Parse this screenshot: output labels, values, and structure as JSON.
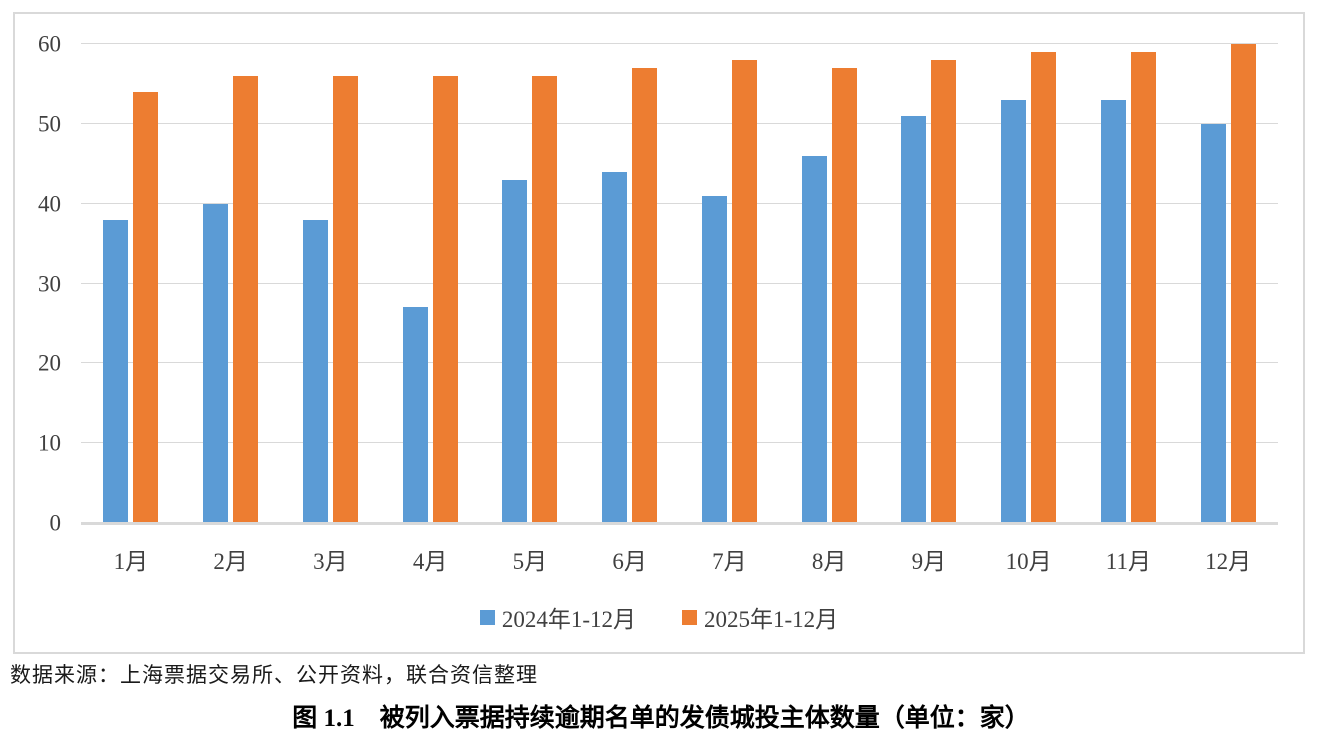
{
  "chart_data": {
    "type": "bar",
    "categories": [
      "1月",
      "2月",
      "3月",
      "4月",
      "5月",
      "6月",
      "7月",
      "8月",
      "9月",
      "10月",
      "11月",
      "12月"
    ],
    "series": [
      {
        "name": "2024年1-12月",
        "color": "#5B9BD5",
        "values": [
          38,
          40,
          38,
          27,
          43,
          44,
          41,
          46,
          51,
          53,
          53,
          50
        ]
      },
      {
        "name": "2025年1-12月",
        "color": "#ED7D31",
        "values": [
          54,
          56,
          56,
          56,
          56,
          57,
          58,
          57,
          58,
          59,
          59,
          60
        ]
      }
    ],
    "title": "",
    "xlabel": "",
    "ylabel": "",
    "ylim": [
      0,
      60
    ],
    "yticks": [
      0,
      10,
      20,
      30,
      40,
      50,
      60
    ],
    "grid": true,
    "legend_position": "bottom"
  },
  "source_text": "数据来源：上海票据交易所、公开资料，联合资信整理",
  "figure_title": "图 1.1　被列入票据持续逾期名单的发债城投主体数量（单位：家）",
  "colors": {
    "gridline": "#D9D9D9",
    "chart_border": "#D9D9D9",
    "tick_label": "#404040",
    "series_blue": "#5B9BD5",
    "series_orange": "#ED7D31"
  }
}
